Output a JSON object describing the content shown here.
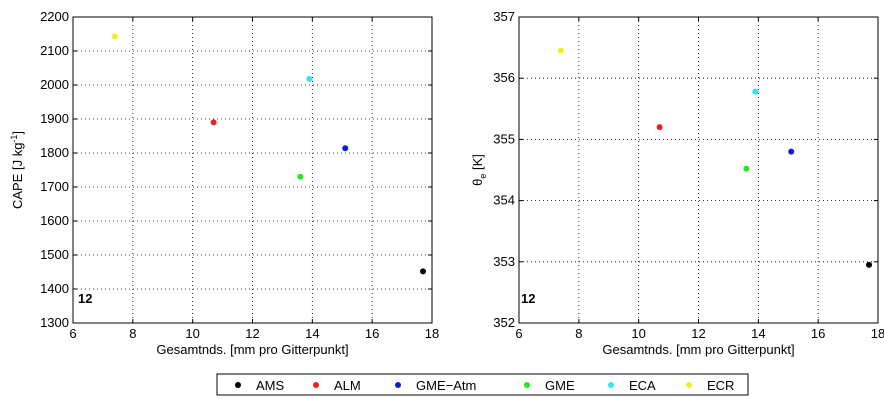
{
  "chart_data": [
    {
      "type": "scatter",
      "panel_tag": "12",
      "xlabel": "Gesamtnds. [mm pro Gitterpunkt]",
      "ylabel": {
        "base": "CAPE [J kg",
        "sup": "-1",
        "tail": "]"
      },
      "xlim": [
        6,
        18
      ],
      "ylim": [
        1300,
        2200
      ],
      "xticks": [
        6,
        8,
        10,
        12,
        14,
        16,
        18
      ],
      "yticks": [
        1300,
        1400,
        1500,
        1600,
        1700,
        1800,
        1900,
        2000,
        2100,
        2200
      ],
      "grid": true,
      "series": [
        {
          "name": "AMS",
          "color": "#000000",
          "x": 17.7,
          "y": 1452
        },
        {
          "name": "ALM",
          "color": "#e8241c",
          "x": 10.7,
          "y": 1890
        },
        {
          "name": "GME-Atm",
          "color": "#0a1ed8",
          "x": 15.1,
          "y": 1814
        },
        {
          "name": "GME",
          "color": "#22e81c",
          "x": 13.6,
          "y": 1730
        },
        {
          "name": "ECA",
          "color": "#2ee8ee",
          "x": 13.9,
          "y": 2018
        },
        {
          "name": "ECR",
          "color": "#f2ee1a",
          "x": 7.4,
          "y": 2143
        }
      ]
    },
    {
      "type": "scatter",
      "panel_tag": "12",
      "xlabel": "Gesamtnds. [mm pro Gitterpunkt]",
      "ylabel": {
        "base": "θ",
        "sub": "e",
        "tail": " [K]"
      },
      "xlim": [
        6,
        18
      ],
      "ylim": [
        352,
        357
      ],
      "xticks": [
        6,
        8,
        10,
        12,
        14,
        16,
        18
      ],
      "yticks": [
        352,
        353,
        354,
        355,
        356,
        357
      ],
      "grid": true,
      "series": [
        {
          "name": "AMS",
          "color": "#000000",
          "x": 17.7,
          "y": 352.95
        },
        {
          "name": "ALM",
          "color": "#e8241c",
          "x": 10.7,
          "y": 355.2
        },
        {
          "name": "GME-Atm",
          "color": "#0a1ed8",
          "x": 15.1,
          "y": 354.8
        },
        {
          "name": "GME",
          "color": "#22e81c",
          "x": 13.6,
          "y": 354.52
        },
        {
          "name": "ECA",
          "color": "#2ee8ee",
          "x": 13.9,
          "y": 355.78
        },
        {
          "name": "ECR",
          "color": "#f2ee1a",
          "x": 7.4,
          "y": 356.45
        }
      ]
    }
  ],
  "legend": {
    "placement": "bottom-center",
    "entries": [
      {
        "label": "AMS",
        "color": "#000000"
      },
      {
        "label": "ALM",
        "color": "#e8241c"
      },
      {
        "label": "GME−Atm",
        "color": "#0a1ed8"
      },
      {
        "label": "GME",
        "color": "#22e81c"
      },
      {
        "label": "ECA",
        "color": "#2ee8ee"
      },
      {
        "label": "ECR",
        "color": "#f2ee1a"
      }
    ]
  }
}
